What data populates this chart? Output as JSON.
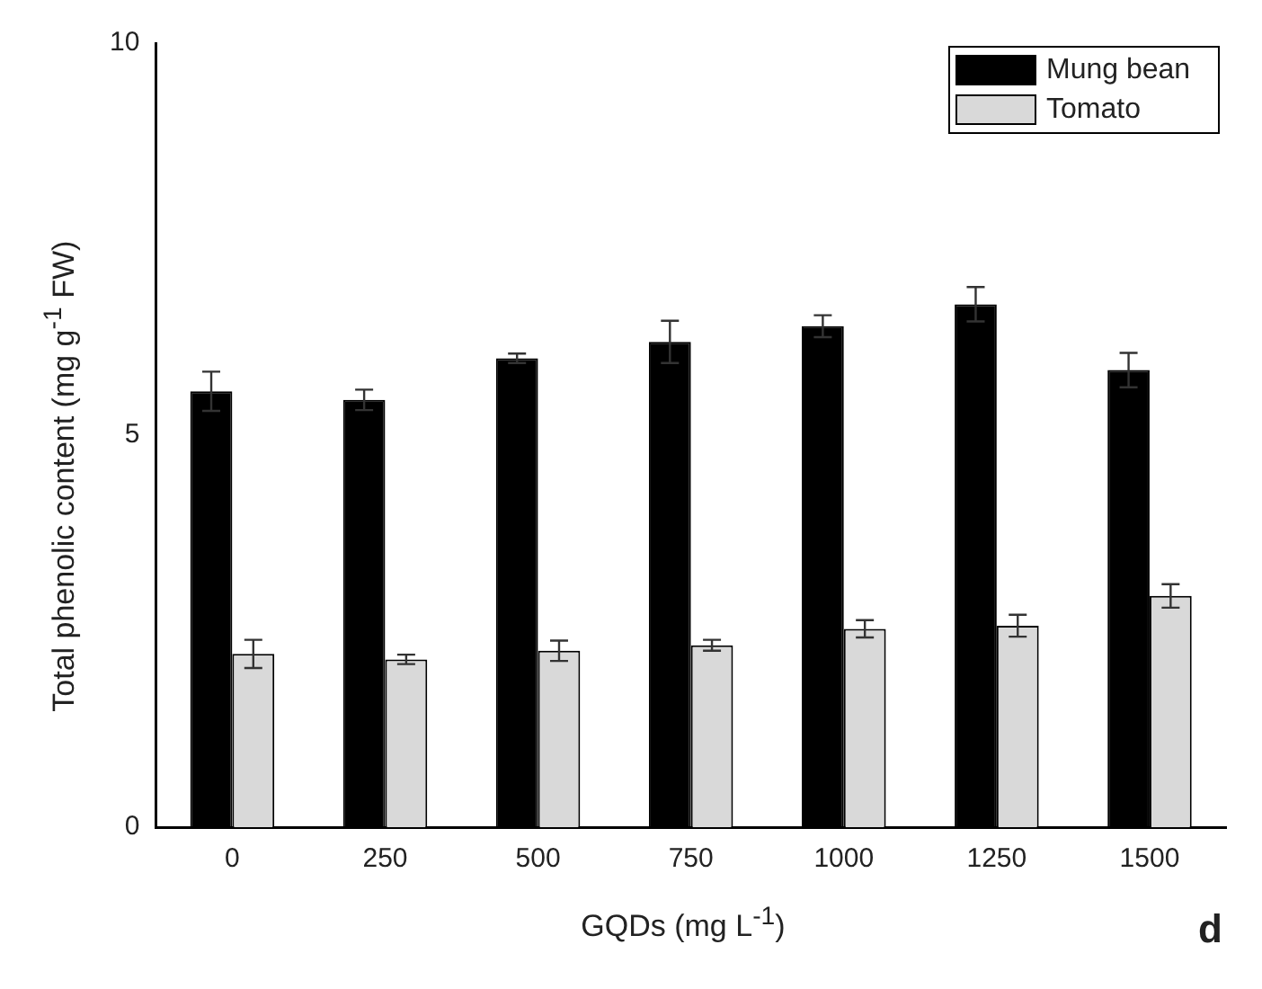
{
  "chart_data": {
    "type": "bar",
    "xlabel": "GQDs (mg L$^{-1}$)",
    "ylabel": "Total phenolic content (mg g$^{-1}$ FW)",
    "categories": [
      "0",
      "250",
      "500",
      "750",
      "1000",
      "1250",
      "1500"
    ],
    "series": [
      {
        "name": "Mung bean",
        "color": "#000000",
        "values": [
          5.56,
          5.45,
          5.98,
          6.19,
          6.39,
          6.67,
          5.83
        ],
        "errors": [
          0.25,
          0.13,
          0.06,
          0.27,
          0.14,
          0.22,
          0.22
        ]
      },
      {
        "name": "Tomato",
        "color": "#d9d9d9",
        "values": [
          2.21,
          2.14,
          2.25,
          2.32,
          2.53,
          2.57,
          2.95
        ],
        "errors": [
          0.18,
          0.06,
          0.13,
          0.07,
          0.11,
          0.14,
          0.15
        ]
      }
    ],
    "ylim": [
      0,
      10
    ],
    "yticks": [
      0,
      5,
      10
    ],
    "grid": false,
    "legend": "top right",
    "annotations": [
      "d"
    ]
  }
}
